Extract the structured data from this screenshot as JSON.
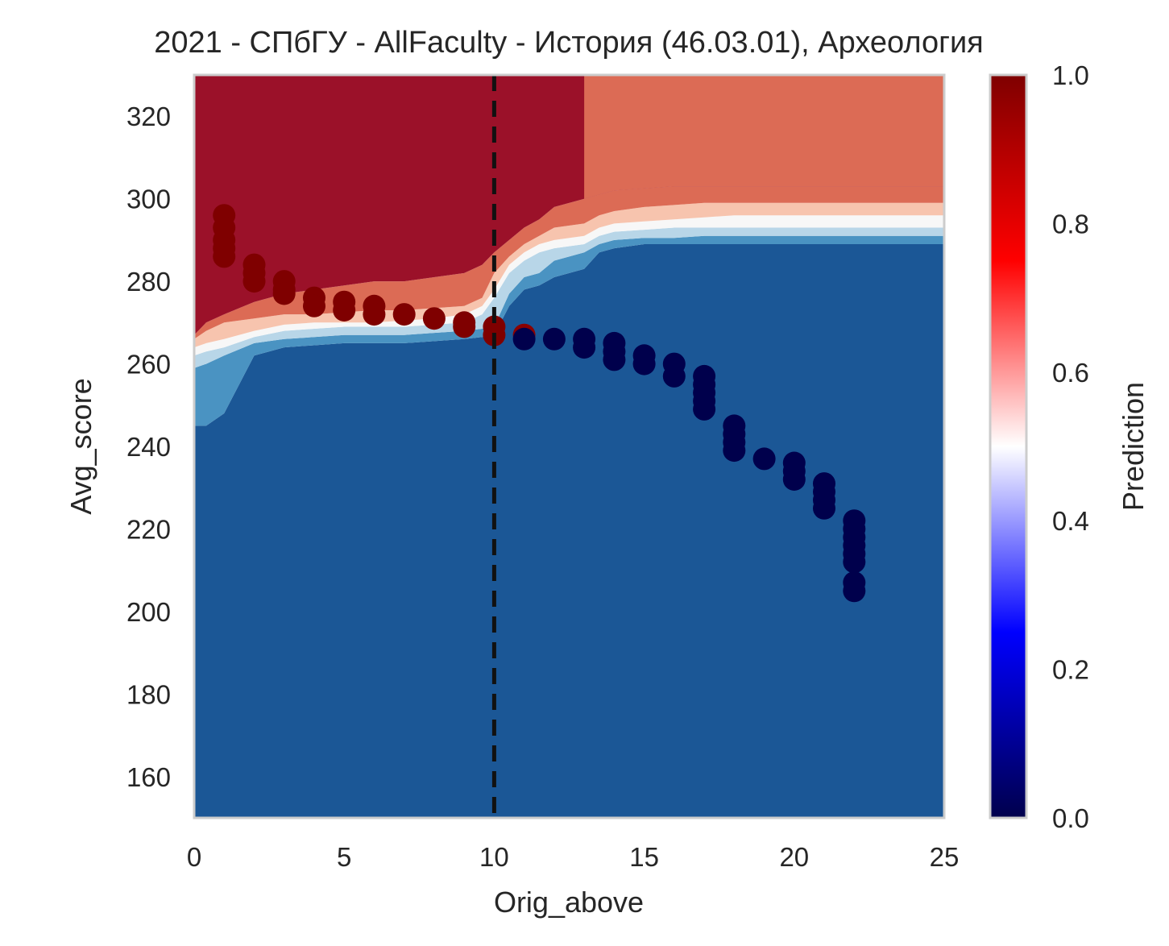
{
  "chart_data": {
    "type": "heatmap",
    "title": "2021 - СПбГУ - AllFaculty - История (46.03.01), Археология",
    "xlabel": "Orig_above",
    "ylabel": "Avg_score",
    "xlim": [
      0,
      25
    ],
    "ylim": [
      150,
      330
    ],
    "xticks": [
      "0",
      "5",
      "10",
      "15",
      "20",
      "25"
    ],
    "yticks": [
      "160",
      "180",
      "200",
      "220",
      "240",
      "260",
      "280",
      "300",
      "320"
    ],
    "grid": false,
    "colorbar": {
      "label": "Prediction",
      "range": [
        0,
        1
      ],
      "ticks": [
        "0.0",
        "0.2",
        "0.4",
        "0.6",
        "0.8",
        "1.0"
      ],
      "colormap": "seismic"
    },
    "vline": {
      "x": 10,
      "style": "dashed",
      "color": "#111111"
    },
    "contour_levels": [
      {
        "name": "level-0.1",
        "color": "#1b5796"
      },
      {
        "name": "level-0.2",
        "color": "#4a93c2"
      },
      {
        "name": "level-0.3",
        "color": "#b8d6e8"
      },
      {
        "name": "level-0.5",
        "color": "#f7f7f7"
      },
      {
        "name": "level-0.7",
        "color": "#f7c4ae"
      },
      {
        "name": "level-0.8",
        "color": "#dc6b55"
      },
      {
        "name": "level-0.9",
        "color": "#9b1129"
      }
    ],
    "boundaries": {
      "x": [
        0,
        0.4,
        1,
        2,
        3,
        4,
        5,
        6,
        7,
        8,
        9,
        9.6,
        10,
        10.5,
        11,
        11.5,
        12,
        13,
        13.5,
        14,
        15,
        16,
        17,
        18,
        19,
        20,
        21,
        22,
        23,
        24,
        25
      ],
      "b0": [
        150,
        150,
        150,
        150,
        150,
        150,
        150,
        150,
        150,
        150,
        150,
        150,
        150,
        150,
        150,
        150,
        150,
        150,
        150,
        150,
        150,
        150,
        150,
        150,
        150,
        150,
        150,
        150,
        150,
        150,
        150
      ],
      "b1": [
        245,
        245,
        248,
        262,
        264,
        264.5,
        265,
        265,
        265,
        265.5,
        266,
        266.5,
        267,
        274,
        278,
        279,
        281,
        283,
        287,
        288,
        289,
        289,
        289,
        289,
        289,
        289,
        289,
        289,
        289,
        289,
        289
      ],
      "b2": [
        259,
        260,
        262,
        265,
        266,
        266.5,
        267,
        267,
        267,
        267.5,
        268,
        268.5,
        269,
        277,
        281,
        282,
        285,
        287,
        289,
        290,
        290.5,
        290.5,
        291,
        291,
        291,
        291,
        291,
        291,
        291,
        291,
        291
      ],
      "b3": [
        262,
        263,
        264,
        266.5,
        268,
        268.5,
        269,
        269,
        269,
        269.5,
        270,
        272,
        276,
        282,
        285,
        287,
        288,
        289,
        291,
        292,
        292.5,
        293,
        293,
        293,
        293,
        293,
        293,
        293,
        293,
        293,
        293
      ],
      "b4": [
        264,
        265,
        266,
        268,
        269.5,
        270,
        270,
        270,
        270.5,
        271,
        272,
        274,
        278,
        284,
        287,
        289,
        290,
        291,
        293,
        294,
        294.5,
        295,
        295.5,
        296,
        296,
        296,
        296,
        296,
        296,
        296,
        296
      ],
      "b5": [
        266,
        268,
        270,
        271,
        272,
        272,
        272.5,
        273,
        273,
        273.5,
        274,
        276,
        282,
        286,
        289,
        291,
        293,
        294,
        296,
        297,
        298,
        298.5,
        299,
        299,
        299,
        299,
        299,
        299,
        299,
        299,
        299
      ],
      "b6": [
        267,
        270,
        272,
        275,
        277,
        278,
        279,
        280,
        280,
        281,
        282,
        284,
        287,
        290,
        293,
        295,
        298,
        300,
        301,
        302,
        302.5,
        303,
        303,
        303,
        303,
        303,
        303,
        303,
        303,
        303,
        303
      ],
      "b7": [
        330,
        330,
        330,
        330,
        330,
        330,
        330,
        330,
        330,
        330,
        330,
        330,
        330,
        330,
        330,
        330,
        330,
        330,
        330,
        330,
        330,
        330,
        330,
        330,
        330,
        330,
        330,
        330,
        330,
        330,
        330
      ]
    },
    "top_step": {
      "x": 13,
      "left_color": "#9b1129",
      "right_color": "#dc6b55"
    },
    "points": [
      {
        "x": 1,
        "y": 296,
        "c": "#7f0000"
      },
      {
        "x": 1,
        "y": 293,
        "c": "#7f0000"
      },
      {
        "x": 1,
        "y": 290,
        "c": "#7f0000"
      },
      {
        "x": 1,
        "y": 288,
        "c": "#7f0000"
      },
      {
        "x": 1,
        "y": 286,
        "c": "#7f0000"
      },
      {
        "x": 2,
        "y": 284,
        "c": "#7f0000"
      },
      {
        "x": 2,
        "y": 282,
        "c": "#7f0000"
      },
      {
        "x": 2,
        "y": 280,
        "c": "#7f0000"
      },
      {
        "x": 3,
        "y": 280,
        "c": "#7f0000"
      },
      {
        "x": 3,
        "y": 278,
        "c": "#7f0000"
      },
      {
        "x": 3,
        "y": 277,
        "c": "#7f0000"
      },
      {
        "x": 4,
        "y": 276,
        "c": "#7f0000"
      },
      {
        "x": 4,
        "y": 274,
        "c": "#7f0000"
      },
      {
        "x": 5,
        "y": 275,
        "c": "#7f0000"
      },
      {
        "x": 5,
        "y": 273,
        "c": "#7f0000"
      },
      {
        "x": 6,
        "y": 274,
        "c": "#7f0000"
      },
      {
        "x": 6,
        "y": 272,
        "c": "#7f0000"
      },
      {
        "x": 7,
        "y": 272,
        "c": "#7f0000"
      },
      {
        "x": 8,
        "y": 271,
        "c": "#7f0000"
      },
      {
        "x": 9,
        "y": 270,
        "c": "#7f0000"
      },
      {
        "x": 9,
        "y": 269,
        "c": "#7f0000"
      },
      {
        "x": 10,
        "y": 269,
        "c": "#7f0000"
      },
      {
        "x": 10,
        "y": 267,
        "c": "#7f0000"
      },
      {
        "x": 11,
        "y": 267,
        "c": "#8b0000"
      },
      {
        "x": 11,
        "y": 266,
        "c": "#00004c"
      },
      {
        "x": 12,
        "y": 266,
        "c": "#00004c"
      },
      {
        "x": 13,
        "y": 266,
        "c": "#00004c"
      },
      {
        "x": 13,
        "y": 264,
        "c": "#00004c"
      },
      {
        "x": 14,
        "y": 265,
        "c": "#00004c"
      },
      {
        "x": 14,
        "y": 263,
        "c": "#00004c"
      },
      {
        "x": 14,
        "y": 261,
        "c": "#00004c"
      },
      {
        "x": 15,
        "y": 262,
        "c": "#00004c"
      },
      {
        "x": 15,
        "y": 260,
        "c": "#00004c"
      },
      {
        "x": 16,
        "y": 260,
        "c": "#00004c"
      },
      {
        "x": 16,
        "y": 257,
        "c": "#00004c"
      },
      {
        "x": 17,
        "y": 257,
        "c": "#00004c"
      },
      {
        "x": 17,
        "y": 255,
        "c": "#00004c"
      },
      {
        "x": 17,
        "y": 253,
        "c": "#00004c"
      },
      {
        "x": 17,
        "y": 251,
        "c": "#00004c"
      },
      {
        "x": 17,
        "y": 249,
        "c": "#00004c"
      },
      {
        "x": 18,
        "y": 245,
        "c": "#00004c"
      },
      {
        "x": 18,
        "y": 243,
        "c": "#00004c"
      },
      {
        "x": 18,
        "y": 241,
        "c": "#00004c"
      },
      {
        "x": 18,
        "y": 239,
        "c": "#00004c"
      },
      {
        "x": 19,
        "y": 237,
        "c": "#00004c"
      },
      {
        "x": 20,
        "y": 236,
        "c": "#00004c"
      },
      {
        "x": 20,
        "y": 234,
        "c": "#00004c"
      },
      {
        "x": 20,
        "y": 232,
        "c": "#00004c"
      },
      {
        "x": 21,
        "y": 231,
        "c": "#00004c"
      },
      {
        "x": 21,
        "y": 229,
        "c": "#00004c"
      },
      {
        "x": 21,
        "y": 227,
        "c": "#00004c"
      },
      {
        "x": 21,
        "y": 225,
        "c": "#00004c"
      },
      {
        "x": 22,
        "y": 222,
        "c": "#00004c"
      },
      {
        "x": 22,
        "y": 220,
        "c": "#00004c"
      },
      {
        "x": 22,
        "y": 218,
        "c": "#00004c"
      },
      {
        "x": 22,
        "y": 216,
        "c": "#00004c"
      },
      {
        "x": 22,
        "y": 214,
        "c": "#00004c"
      },
      {
        "x": 22,
        "y": 212,
        "c": "#00004c"
      },
      {
        "x": 22,
        "y": 207,
        "c": "#00004c"
      },
      {
        "x": 22,
        "y": 205,
        "c": "#00004c"
      }
    ]
  }
}
